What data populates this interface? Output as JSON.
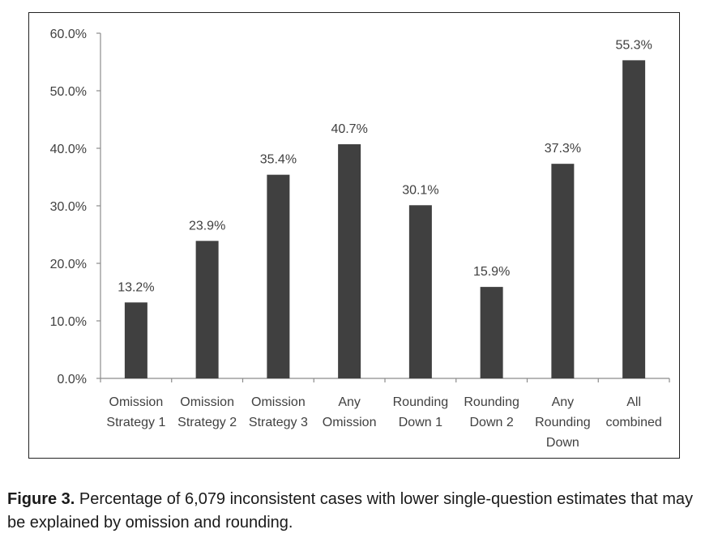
{
  "chart_data": {
    "type": "bar",
    "categories": [
      [
        "Omission",
        "Strategy 1"
      ],
      [
        "Omission",
        "Strategy 2"
      ],
      [
        "Omission",
        "Strategy 3"
      ],
      [
        "Any",
        "Omission"
      ],
      [
        "Rounding",
        "Down 1"
      ],
      [
        "Rounding",
        "Down 2"
      ],
      [
        "Any",
        "Rounding",
        "Down"
      ],
      [
        "All",
        "combined"
      ]
    ],
    "values": [
      13.2,
      23.9,
      35.4,
      40.7,
      30.1,
      15.9,
      37.3,
      55.3
    ],
    "data_labels": [
      "13.2%",
      "23.9%",
      "35.4%",
      "40.7%",
      "30.1%",
      "15.9%",
      "37.3%",
      "55.3%"
    ],
    "ylim": [
      0,
      60
    ],
    "yticks": [
      0,
      10,
      20,
      30,
      40,
      50,
      60
    ],
    "ytick_labels": [
      "0.0%",
      "10.0%",
      "20.0%",
      "30.0%",
      "40.0%",
      "50.0%",
      "60.0%"
    ],
    "grid": false,
    "bar_color": "#404040",
    "title": "",
    "xlabel": "",
    "ylabel": ""
  },
  "caption": {
    "label": "Figure 3.",
    "text": "Percentage of 6,079 inconsistent cases with lower single-question estimates that may be explained by omission and rounding."
  }
}
